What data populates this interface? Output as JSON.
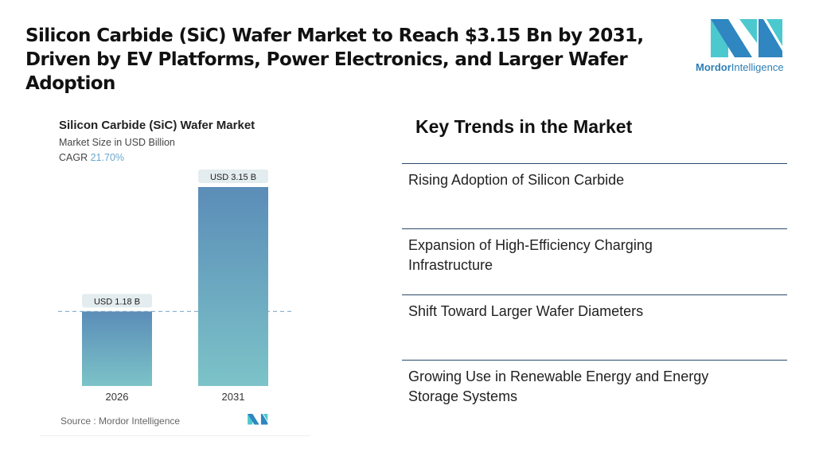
{
  "header": {
    "title": "Silicon Carbide (SiC) Wafer Market to Reach $3.15 Bn by 2031, Driven by EV Platforms, Power Electronics, and Larger Wafer Adoption"
  },
  "logo": {
    "name_bold": "Mordor",
    "name_rest": "Intelligence",
    "colors": [
      "#2f86c0",
      "#4cc9cf"
    ]
  },
  "chart_data": {
    "type": "bar",
    "title": "Silicon Carbide (SiC) Wafer Market",
    "subtitle": "Market Size in USD Billion",
    "cagr_label": "CAGR",
    "cagr_value": "21.70%",
    "categories": [
      "2026",
      "2031"
    ],
    "values": [
      1.18,
      3.15
    ],
    "data_labels": [
      "USD 1.18 B",
      "USD 3.15 B"
    ],
    "ylim": [
      0,
      3.15
    ],
    "grid": false,
    "reference_line": "dashed at 2026 value",
    "bar_gradient": [
      "#5b8db8",
      "#7cc3c8"
    ],
    "source": "Source :  Mordor Intelligence"
  },
  "trends": {
    "title": "Key Trends in the Market",
    "items": [
      "Rising Adoption of Silicon Carbide",
      "Expansion of High-Efficiency Charging Infrastructure",
      "Shift Toward Larger Wafer Diameters",
      "Growing Use in Renewable Energy and Energy Storage Systems"
    ]
  }
}
